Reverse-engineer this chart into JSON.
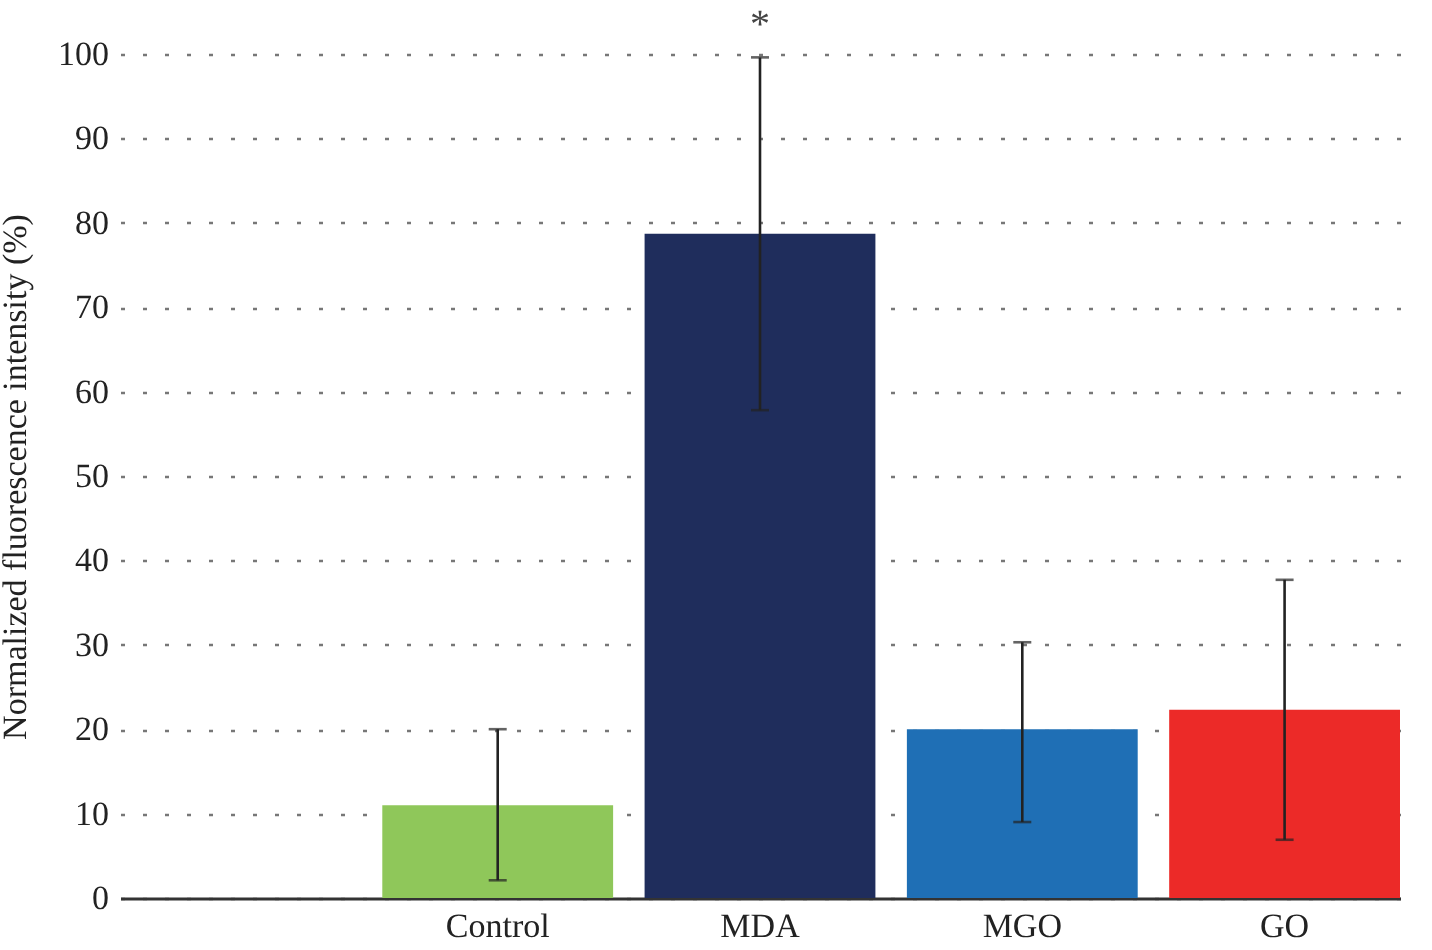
{
  "chart_data": {
    "type": "bar",
    "ylabel": "Normalized fluorescence intensity (%)",
    "categories": [
      null,
      "Control",
      "MDA",
      "MGO",
      "GO"
    ],
    "values": [
      null,
      11,
      78.7,
      20,
      22.3
    ],
    "colors": [
      "#ffffff",
      "#8fc75a",
      "#1f2d5c",
      "#1f6fb5",
      "#ec2a28"
    ],
    "errors": [
      null,
      [
        2.1,
        20
      ],
      [
        57.8,
        99.6
      ],
      [
        9,
        30.3
      ],
      [
        6.9,
        37.7
      ]
    ],
    "ylim": [
      0,
      100
    ],
    "yticks": [
      0,
      10,
      20,
      30,
      40,
      50,
      60,
      70,
      80,
      90,
      100
    ],
    "grid": "y",
    "annotations": [
      {
        "text": "*",
        "x": "MDA",
        "y": 99.6
      }
    ]
  }
}
